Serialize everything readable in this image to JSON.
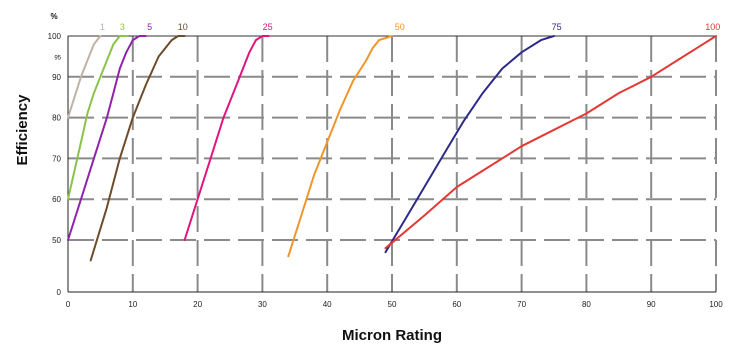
{
  "chart_data": {
    "type": "line",
    "xlabel": "Micron Rating",
    "ylabel": "Efficiency",
    "y_unit": "%",
    "xlim": [
      0,
      100
    ],
    "ylim": [
      40,
      100
    ],
    "x_ticks": [
      0,
      10,
      20,
      30,
      40,
      50,
      60,
      70,
      80,
      90,
      100
    ],
    "y_ticks": [
      {
        "value": 50,
        "label": "50"
      },
      {
        "value": 60,
        "label": "60"
      },
      {
        "value": 70,
        "label": "70"
      },
      {
        "value": 80,
        "label": "80"
      },
      {
        "value": 90,
        "label": "90"
      },
      {
        "value": 95,
        "label": "95"
      },
      {
        "value": 100,
        "label": "100"
      }
    ],
    "y_zero_label": "0",
    "grid": true,
    "series": [
      {
        "name": "1",
        "color": "#bfb2a6",
        "label_x": 5.3,
        "x": [
          0,
          1,
          2,
          3,
          4,
          5
        ],
        "y": [
          80,
          85,
          90,
          94,
          98,
          100
        ]
      },
      {
        "name": "3",
        "color": "#8bc34a",
        "label_x": 8.4,
        "x": [
          0,
          1,
          2,
          3,
          4,
          5,
          6,
          7,
          8,
          9
        ],
        "y": [
          60,
          67,
          74,
          81,
          86,
          90,
          94,
          98,
          100,
          100
        ]
      },
      {
        "name": "5",
        "color": "#8e24aa",
        "label_x": 12.6,
        "x": [
          0,
          2,
          4,
          6,
          7,
          8,
          9,
          10,
          11,
          12
        ],
        "y": [
          50,
          60,
          70,
          80,
          86,
          92,
          96,
          99,
          100,
          100
        ]
      },
      {
        "name": "10",
        "color": "#6d4c2b",
        "label_x": 17.7,
        "x": [
          3.5,
          6,
          8,
          10,
          12,
          14,
          16,
          17,
          18
        ],
        "y": [
          45,
          58,
          70,
          80,
          88,
          95,
          99,
          100,
          100
        ]
      },
      {
        "name": "25",
        "color": "#e0157f",
        "label_x": 30.8,
        "x": [
          18,
          20,
          22,
          24,
          26,
          28,
          29,
          30,
          31
        ],
        "y": [
          50,
          60,
          70,
          80,
          88,
          96,
          99,
          100,
          100
        ]
      },
      {
        "name": "50",
        "color": "#f0962a",
        "label_x": 51.2,
        "x": [
          34,
          36,
          38,
          40,
          42,
          44,
          46,
          47,
          48,
          50
        ],
        "y": [
          46,
          56,
          66,
          74,
          82,
          89,
          94,
          97,
          99,
          100
        ]
      },
      {
        "name": "75",
        "color": "#2e2a8a",
        "label_x": 75.4,
        "x": [
          49,
          52,
          55,
          58,
          61,
          64,
          67,
          70,
          73,
          75
        ],
        "y": [
          47,
          55,
          63,
          71,
          79,
          86,
          92,
          96,
          99,
          100
        ]
      },
      {
        "name": "100",
        "color": "#e53935",
        "label_x": 99.5,
        "x": [
          49,
          55,
          60,
          65,
          70,
          75,
          80,
          85,
          90,
          95,
          98,
          100
        ],
        "y": [
          48,
          56,
          63,
          68,
          73,
          77,
          81,
          86,
          90,
          95,
          98,
          100
        ]
      }
    ]
  }
}
